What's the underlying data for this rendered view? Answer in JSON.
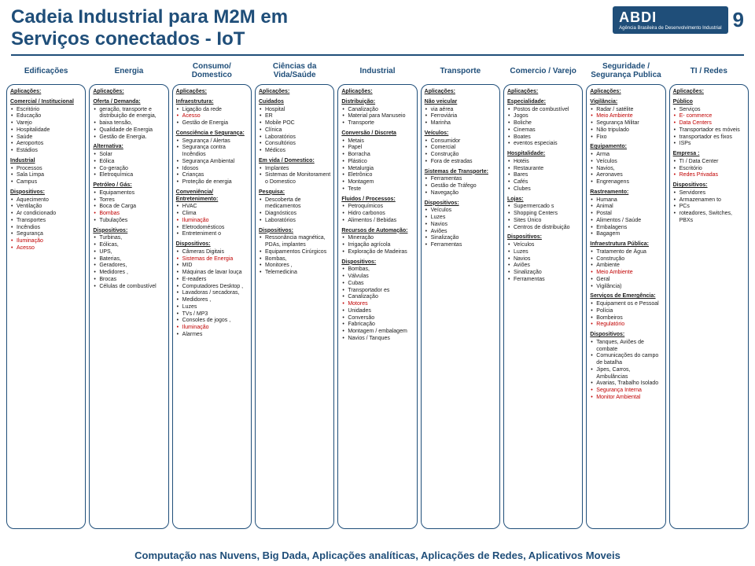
{
  "header": {
    "title_l1": "Cadeia Industrial para M2M em",
    "title_l2": "Serviços conectados - IoT",
    "logo_main": "ABDI",
    "logo_sub": "Agência Brasileira de Desenvolvimento Industrial",
    "page_num": "9"
  },
  "colors": {
    "primary": "#1f4e79",
    "accent": "#c00000",
    "bg": "#ffffff"
  },
  "labels": {
    "aplicacoes": "Aplicações:",
    "dispositivos": "Dispositivos:"
  },
  "columns": [
    {
      "header": "Edificações",
      "sections": [
        {
          "title": "Aplicações:",
          "items": []
        },
        {
          "title": "Comercial / Institucional",
          "items": [
            "Escritório",
            "Educação",
            "Varejo",
            "Hospitalidade",
            "Saúde",
            "Aeroportos",
            "Estádios"
          ]
        },
        {
          "title": "Industrial",
          "items": [
            "Processos",
            "Sala Limpa",
            "Campus"
          ]
        },
        {
          "title": "Dispositivos:",
          "items": [
            "Aquecimento",
            "Ventilação",
            "Ar condicionado",
            "Transportes",
            "Incêndios",
            "Segurança",
            "Iluminação",
            "Acesso"
          ]
        }
      ]
    },
    {
      "header": "Energia",
      "sections": [
        {
          "title": "Aplicações:",
          "items": []
        },
        {
          "title": "Oferta / Demanda:",
          "items": [
            "geração, transporte e distribuição de energia,",
            "baixa tensão,",
            "Qualidade de Energia",
            "Gestão de Energia."
          ]
        },
        {
          "title": "Alternativa:",
          "items": [
            "Solar",
            "Eólica",
            "Co-geração",
            "Eletroquímica"
          ]
        },
        {
          "title": "Petróleo / Gás:",
          "items": [
            "Equipamentos",
            "Torres",
            "Boca de Carga",
            "Bombas",
            "Tubulações"
          ]
        },
        {
          "title": "Dispositivos:",
          "items": [
            "Turbinas,",
            "Eólicas,",
            "UPS,",
            "Baterias,",
            "Geradores,",
            "Medidores ,",
            "Brocas",
            "Células de combustível"
          ]
        }
      ]
    },
    {
      "header": "Consumo/ Domestico",
      "sections": [
        {
          "title": "Aplicações:",
          "items": []
        },
        {
          "title": "Infraestrutura:",
          "items": [
            "Ligação da rede",
            "Acesso",
            "Gestão de Energia"
          ]
        },
        {
          "title": "Consciência e Segurança:",
          "items": [
            "Segurança / Alertas",
            "Segurança contra Incêndios",
            "Segurança Ambiental",
            "Idosos",
            "Crianças",
            "Proteção de energia"
          ]
        },
        {
          "title": "Conveniência/ Entretenimento:",
          "items": [
            "HVAC",
            "Clima",
            "Iluminação",
            "Eletrodomésticos",
            "Entreteniment o"
          ]
        },
        {
          "title": "Dispositivos:",
          "items": [
            "Câmeras Digitais",
            "Sistemas de Energia",
            "MID",
            "Máquinas de lavar louça",
            "E-readers",
            "Computadores Desktop ,",
            "Lavadoras / secadoras,",
            "Medidores ,",
            "Luzes",
            "TVs / MP3",
            "Consoles de jogos ,",
            "Iluminação",
            "Alarmes"
          ]
        }
      ]
    },
    {
      "header": "Ciências da Vida/Saúde",
      "sections": [
        {
          "title": "Aplicações:",
          "items": []
        },
        {
          "title": "Cuidados",
          "items": [
            "Hospital",
            "ER",
            "Mobile POC",
            "Clínica",
            "Laboratórios",
            "Consultórios",
            "Médicos"
          ]
        },
        {
          "title": "Em vida / Domestico:",
          "items": [
            "Implantes",
            "Sistemas de Monitorament o Domestico"
          ]
        },
        {
          "title": "Pesquisa:",
          "items": [
            "Descoberta de medicamentos",
            "Diagnósticos",
            "Laboratórios"
          ]
        },
        {
          "title": "Dispositivos:",
          "items": [
            "Ressonância magnética, PDAs, implantes",
            "Equipamentos Cirúrgicos",
            "Bombas,",
            "Monitores ,",
            "Telemedicina"
          ]
        }
      ]
    },
    {
      "header": "Industrial",
      "sections": [
        {
          "title": "Aplicações:",
          "items": []
        },
        {
          "title": "Distribuição:",
          "items": [
            "Canalização",
            "Material para Manuseio",
            "Transporte"
          ]
        },
        {
          "title": "Conversão / Discreta",
          "items": [
            "Metais",
            "Papel",
            "Borracha",
            "Plástico",
            "Metalurgia",
            "Eletrônico",
            "Montagem",
            "Teste"
          ]
        },
        {
          "title": "Fluidos / Processos:",
          "items": [
            "Petroquímicos",
            "Hidro carbonos",
            "Alimentos / Bebidas"
          ]
        },
        {
          "title": "Recursos de Automação:",
          "items": [
            "Mineração",
            "Irrigação agrícola",
            "Exploração de Madeiras"
          ]
        },
        {
          "title": "Dispositivos:",
          "items": [
            "Bombas,",
            "Válvulas",
            "Cubas",
            "Transportador es",
            "Canalização",
            "Motores",
            "Unidades",
            "Conversão",
            "Fabricação",
            "Montagem / embalagem",
            "Navios / Tanques"
          ]
        }
      ]
    },
    {
      "header": "Transporte",
      "sections": [
        {
          "title": "Aplicações:",
          "items": []
        },
        {
          "title": "Não veicular",
          "items": [
            "via aérea",
            "Ferroviária",
            "Marinha"
          ]
        },
        {
          "title": "Veículos:",
          "items": [
            "Consumidor",
            "Comercial",
            "Construção",
            "Fora de estradas"
          ]
        },
        {
          "title": "Sistemas de Transporte:",
          "items": [
            "Ferramentas",
            "Gestão de Tráfego",
            "Navegação"
          ]
        },
        {
          "title": "Dispositivos:",
          "items": [
            "Veículos",
            "Luzes",
            "Navios",
            "Aviões",
            "Sinalização",
            "Ferramentas"
          ]
        }
      ]
    },
    {
      "header": "Comercio / Varejo",
      "sections": [
        {
          "title": "Aplicações:",
          "items": []
        },
        {
          "title": "Especialidade:",
          "items": [
            "Postos de combustível",
            "Jogos",
            "Boliche",
            "Cinemas",
            "Boates",
            "eventos especiais"
          ]
        },
        {
          "title": "Hospitalidade:",
          "items": [
            "Hotéis",
            "Restaurante",
            "Bares",
            "Cafés",
            "Clubes"
          ]
        },
        {
          "title": "Lojas:",
          "items": [
            "Supermercado s",
            "Shopping Centers",
            "Sites Único",
            "Centros de distribuição"
          ]
        },
        {
          "title": "Dispositivos:",
          "items": [
            "Veículos",
            "Luzes",
            "Navios",
            "Aviões",
            "Sinalização",
            "Ferramentas"
          ]
        }
      ]
    },
    {
      "header": "Seguridade / Segurança Publica",
      "sections": [
        {
          "title": "Aplicações:",
          "items": []
        },
        {
          "title": "Vigilância:",
          "items": [
            "Radar / satélite",
            "Meio Ambiente",
            "Segurança Militar",
            "Não tripulado",
            "Fixo"
          ]
        },
        {
          "title": "Equipamento:",
          "items": [
            "Arma",
            "Veículos",
            "Navios,",
            "Aeronaves",
            "Engrenagens"
          ]
        },
        {
          "title": "Rastreamento:",
          "items": [
            "Humana",
            "Animal",
            "Postal",
            "Alimentos / Saúde",
            "Embalagens",
            "Bagagem"
          ]
        },
        {
          "title": "Infraestrutura Pública:",
          "items": [
            "Tratamento de Água",
            "Construção",
            "Ambiente",
            "Meio Ambiente",
            "Geral",
            "Vigilância)"
          ]
        },
        {
          "title": "Serviços de Emergência:",
          "items": [
            "Equipament os e Pessoal",
            "Polícia",
            "Bombeiros",
            "Regulatório"
          ]
        },
        {
          "title": "Dispositivos:",
          "items": [
            "Tanques, Aviões de combate",
            "Comunicações do campo de batalha",
            "Jipes, Carros, Ambulâncias",
            "Avarias, Trabalho Isolado",
            "Segurança Interna",
            "Monitor Ambiental"
          ]
        }
      ]
    },
    {
      "header": "TI / Redes",
      "sections": [
        {
          "title": "Aplicações:",
          "items": []
        },
        {
          "title": "Público",
          "items": [
            "Serviços",
            "E- commerce",
            "Data Centers",
            "Transportador es móveis",
            "transportador es fixos",
            "ISPs"
          ]
        },
        {
          "title": "Empresa :",
          "items": [
            "TI / Data Center",
            "Escritório",
            "Redes Privadas"
          ]
        },
        {
          "title": "Dispositivos:",
          "items": [
            "Servidores",
            "Armazenamen to",
            "PCs",
            "roteadores, Switches, PBXs"
          ]
        }
      ]
    }
  ],
  "red_terms": [
    "Iluminação",
    "Acesso",
    "Bombas",
    "Motores",
    "Sistemas de Energia",
    "Segurança Interna",
    "Monitor Ambiental",
    "Meio Ambiente",
    "Regulatório",
    "Redes Privadas",
    "E- commerce",
    "Data Centers"
  ],
  "footer": "Computação nas Nuvens,  Big Dada,  Aplicações analíticas,  Aplicações de Redes,  Aplicativos Moveis"
}
